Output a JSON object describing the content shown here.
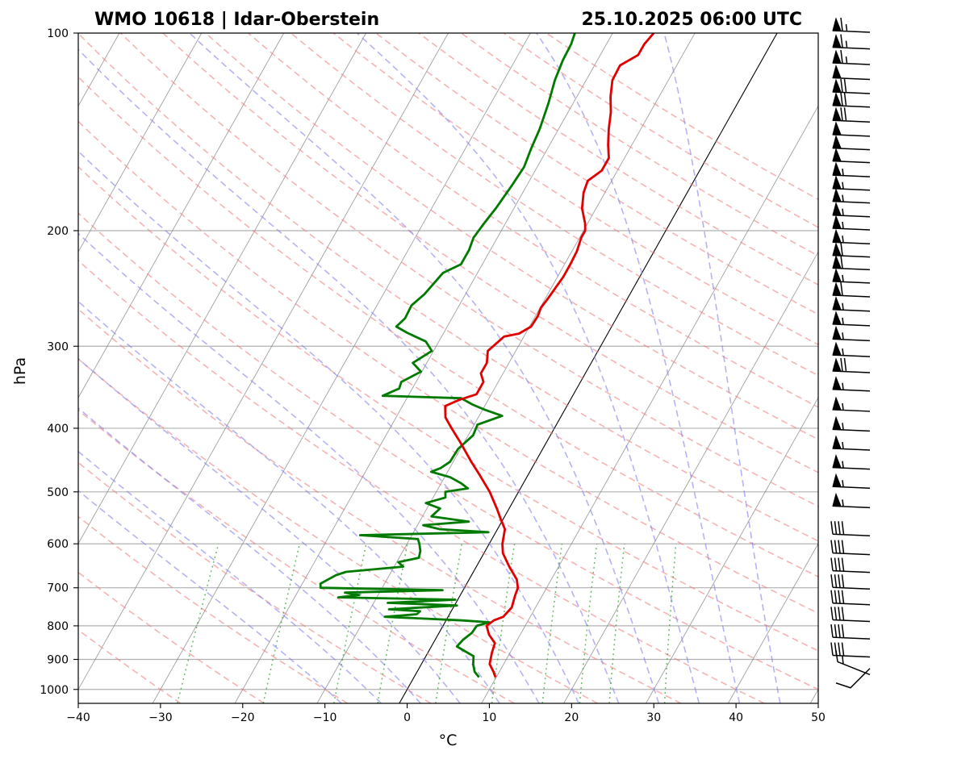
{
  "header": {
    "station": "WMO 10618 | Idar-Oberstein",
    "datetime": "25.10.2025 06:00 UTC"
  },
  "chart_data": {
    "type": "skew-t log-p",
    "xlabel": "°C",
    "ylabel": "hPa",
    "xlim": [
      -40,
      50
    ],
    "ylim_hpa": [
      1050,
      100
    ],
    "y_scale": "log",
    "x_ticks": [
      -40,
      -30,
      -20,
      -10,
      0,
      10,
      20,
      30,
      40,
      50
    ],
    "y_ticks": [
      100,
      200,
      300,
      400,
      500,
      600,
      700,
      800,
      900,
      1000
    ],
    "grid": true,
    "skew_per_decade_c": 45,
    "colors": {
      "temperature": "#e00000",
      "dewpoint": "#007a00",
      "dry_adiabats": "#f08080",
      "moist_adiabats": "#8080f0",
      "mixing_ratio": "#2ca02c",
      "isotherms": "#808080",
      "zero_isotherm": "#000000"
    },
    "temperature": [
      {
        "p": 958,
        "t": 9.9
      },
      {
        "p": 940,
        "t": 9.3
      },
      {
        "p": 915,
        "t": 8.3
      },
      {
        "p": 880,
        "t": 7.8
      },
      {
        "p": 850,
        "t": 7.5
      },
      {
        "p": 825,
        "t": 6.2
      },
      {
        "p": 800,
        "t": 5.3
      },
      {
        "p": 785,
        "t": 5.8
      },
      {
        "p": 775,
        "t": 6.7
      },
      {
        "p": 750,
        "t": 7.1
      },
      {
        "p": 720,
        "t": 6.7
      },
      {
        "p": 700,
        "t": 6.5
      },
      {
        "p": 680,
        "t": 5.8
      },
      {
        "p": 650,
        "t": 4.0
      },
      {
        "p": 620,
        "t": 2.3
      },
      {
        "p": 600,
        "t": 1.6
      },
      {
        "p": 570,
        "t": 0.9
      },
      {
        "p": 550,
        "t": -0.3
      },
      {
        "p": 530,
        "t": -1.5
      },
      {
        "p": 500,
        "t": -3.5
      },
      {
        "p": 470,
        "t": -6.0
      },
      {
        "p": 450,
        "t": -7.8
      },
      {
        "p": 420,
        "t": -10.5
      },
      {
        "p": 400,
        "t": -12.5
      },
      {
        "p": 385,
        "t": -14.0
      },
      {
        "p": 370,
        "t": -14.8
      },
      {
        "p": 362,
        "t": -13.5
      },
      {
        "p": 355,
        "t": -11.8
      },
      {
        "p": 340,
        "t": -11.8
      },
      {
        "p": 330,
        "t": -12.7
      },
      {
        "p": 318,
        "t": -12.7
      },
      {
        "p": 305,
        "t": -13.4
      },
      {
        "p": 290,
        "t": -12.4
      },
      {
        "p": 287,
        "t": -10.8
      },
      {
        "p": 280,
        "t": -9.8
      },
      {
        "p": 270,
        "t": -9.7
      },
      {
        "p": 262,
        "t": -9.9
      },
      {
        "p": 255,
        "t": -9.7
      },
      {
        "p": 245,
        "t": -9.5
      },
      {
        "p": 235,
        "t": -9.3
      },
      {
        "p": 225,
        "t": -9.3
      },
      {
        "p": 215,
        "t": -9.4
      },
      {
        "p": 205,
        "t": -9.8
      },
      {
        "p": 200,
        "t": -9.8
      },
      {
        "p": 195,
        "t": -10.3
      },
      {
        "p": 185,
        "t": -11.7
      },
      {
        "p": 175,
        "t": -12.6
      },
      {
        "p": 168,
        "t": -12.9
      },
      {
        "p": 162,
        "t": -11.9
      },
      {
        "p": 155,
        "t": -11.9
      },
      {
        "p": 148,
        "t": -12.9
      },
      {
        "p": 140,
        "t": -13.9
      },
      {
        "p": 132,
        "t": -14.8
      },
      {
        "p": 125,
        "t": -15.9
      },
      {
        "p": 118,
        "t": -16.8
      },
      {
        "p": 112,
        "t": -16.9
      },
      {
        "p": 108,
        "t": -15.4
      },
      {
        "p": 104,
        "t": -15.4
      },
      {
        "p": 100,
        "t": -15.0
      }
    ],
    "dewpoint": [
      {
        "p": 958,
        "t": 7.9
      },
      {
        "p": 940,
        "t": 7.0
      },
      {
        "p": 915,
        "t": 6.3
      },
      {
        "p": 890,
        "t": 5.8
      },
      {
        "p": 870,
        "t": 4.0
      },
      {
        "p": 860,
        "t": 3.1
      },
      {
        "p": 840,
        "t": 3.4
      },
      {
        "p": 820,
        "t": 4.0
      },
      {
        "p": 800,
        "t": 4.1
      },
      {
        "p": 790,
        "t": 5.4
      },
      {
        "p": 785,
        "t": 2.0
      },
      {
        "p": 775,
        "t": -7.7
      },
      {
        "p": 768,
        "t": -4.0
      },
      {
        "p": 760,
        "t": -3.8
      },
      {
        "p": 755,
        "t": -7.7
      },
      {
        "p": 745,
        "t": 0.3
      },
      {
        "p": 738,
        "t": -8.3
      },
      {
        "p": 730,
        "t": -0.3
      },
      {
        "p": 724,
        "t": -14.7
      },
      {
        "p": 718,
        "t": -12.3
      },
      {
        "p": 712,
        "t": -14.2
      },
      {
        "p": 706,
        "t": -2.5
      },
      {
        "p": 700,
        "t": -17.5
      },
      {
        "p": 690,
        "t": -17.8
      },
      {
        "p": 670,
        "t": -16.5
      },
      {
        "p": 662,
        "t": -15.5
      },
      {
        "p": 650,
        "t": -8.9
      },
      {
        "p": 640,
        "t": -9.8
      },
      {
        "p": 630,
        "t": -7.6
      },
      {
        "p": 615,
        "t": -7.9
      },
      {
        "p": 600,
        "t": -8.5
      },
      {
        "p": 590,
        "t": -9.0
      },
      {
        "p": 582,
        "t": -16.3
      },
      {
        "p": 576,
        "t": -0.9
      },
      {
        "p": 570,
        "t": -7.0
      },
      {
        "p": 562,
        "t": -9.3
      },
      {
        "p": 555,
        "t": -4.0
      },
      {
        "p": 545,
        "t": -8.9
      },
      {
        "p": 530,
        "t": -8.4
      },
      {
        "p": 520,
        "t": -10.5
      },
      {
        "p": 510,
        "t": -8.5
      },
      {
        "p": 500,
        "t": -8.9
      },
      {
        "p": 494,
        "t": -6.4
      },
      {
        "p": 485,
        "t": -7.6
      },
      {
        "p": 475,
        "t": -9.3
      },
      {
        "p": 466,
        "t": -12.0
      },
      {
        "p": 460,
        "t": -11.1
      },
      {
        "p": 450,
        "t": -10.4
      },
      {
        "p": 430,
        "t": -10.3
      },
      {
        "p": 410,
        "t": -9.4
      },
      {
        "p": 395,
        "t": -9.6
      },
      {
        "p": 383,
        "t": -7.2
      },
      {
        "p": 375,
        "t": -9.7
      },
      {
        "p": 368,
        "t": -11.6
      },
      {
        "p": 360,
        "t": -13.4
      },
      {
        "p": 357,
        "t": -23.1
      },
      {
        "p": 348,
        "t": -21.6
      },
      {
        "p": 340,
        "t": -21.8
      },
      {
        "p": 328,
        "t": -20.1
      },
      {
        "p": 318,
        "t": -21.7
      },
      {
        "p": 305,
        "t": -20.2
      },
      {
        "p": 295,
        "t": -21.6
      },
      {
        "p": 286,
        "t": -24.5
      },
      {
        "p": 280,
        "t": -26.2
      },
      {
        "p": 272,
        "t": -25.7
      },
      {
        "p": 260,
        "t": -25.8
      },
      {
        "p": 250,
        "t": -25.0
      },
      {
        "p": 232,
        "t": -24.2
      },
      {
        "p": 225,
        "t": -22.6
      },
      {
        "p": 214,
        "t": -22.6
      },
      {
        "p": 205,
        "t": -22.9
      },
      {
        "p": 195,
        "t": -22.6
      },
      {
        "p": 185,
        "t": -22.2
      },
      {
        "p": 170,
        "t": -21.8
      },
      {
        "p": 160,
        "t": -21.6
      },
      {
        "p": 150,
        "t": -22.0
      },
      {
        "p": 140,
        "t": -22.3
      },
      {
        "p": 128,
        "t": -23.0
      },
      {
        "p": 118,
        "t": -23.8
      },
      {
        "p": 110,
        "t": -24.2
      },
      {
        "p": 104,
        "t": -24.3
      },
      {
        "p": 100,
        "t": -24.6
      }
    ],
    "wind_barbs": [
      {
        "p": 100,
        "kt": 65
      },
      {
        "p": 106,
        "kt": 65
      },
      {
        "p": 112,
        "kt": 65
      },
      {
        "p": 118,
        "kt": 50
      },
      {
        "p": 124,
        "kt": 70
      },
      {
        "p": 130,
        "kt": 70
      },
      {
        "p": 137,
        "kt": 70
      },
      {
        "p": 144,
        "kt": 50
      },
      {
        "p": 151,
        "kt": 50
      },
      {
        "p": 158,
        "kt": 50
      },
      {
        "p": 166,
        "kt": 55
      },
      {
        "p": 174,
        "kt": 55
      },
      {
        "p": 182,
        "kt": 55
      },
      {
        "p": 191,
        "kt": 55
      },
      {
        "p": 200,
        "kt": 55
      },
      {
        "p": 210,
        "kt": 55
      },
      {
        "p": 220,
        "kt": 60
      },
      {
        "p": 230,
        "kt": 60
      },
      {
        "p": 241,
        "kt": 55
      },
      {
        "p": 253,
        "kt": 60
      },
      {
        "p": 266,
        "kt": 55
      },
      {
        "p": 280,
        "kt": 55
      },
      {
        "p": 295,
        "kt": 55
      },
      {
        "p": 312,
        "kt": 55
      },
      {
        "p": 330,
        "kt": 70
      },
      {
        "p": 352,
        "kt": 55
      },
      {
        "p": 378,
        "kt": 55
      },
      {
        "p": 405,
        "kt": 55
      },
      {
        "p": 433,
        "kt": 55
      },
      {
        "p": 463,
        "kt": 55
      },
      {
        "p": 495,
        "kt": 55
      },
      {
        "p": 530,
        "kt": 55
      },
      {
        "p": 585,
        "kt": 40
      },
      {
        "p": 625,
        "kt": 40
      },
      {
        "p": 665,
        "kt": 40
      },
      {
        "p": 705,
        "kt": 40
      },
      {
        "p": 745,
        "kt": 40
      },
      {
        "p": 790,
        "kt": 40
      },
      {
        "p": 840,
        "kt": 40
      },
      {
        "p": 895,
        "kt": 40
      },
      {
        "p": 955,
        "kt": 15
      },
      {
        "p": 1000,
        "kt": 5
      }
    ]
  }
}
